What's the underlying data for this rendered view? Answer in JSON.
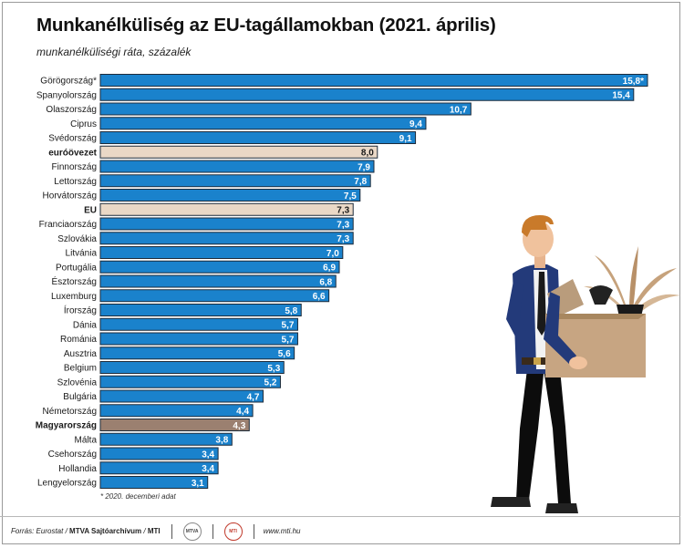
{
  "title": "Munkanélküliség az EU-tagállamokban (2021. április)",
  "subtitle": "munkanélküliségi ráta, százalék",
  "footnote": "* 2020. decemberi adat",
  "footer": {
    "source_label": "Forrás: Eurostat",
    "credit": "MTVA Sajtóarchívum",
    "agency": "MTI",
    "website": "www.mti.hu",
    "logo1": "MTVA",
    "logo2": "MTI"
  },
  "colors": {
    "bar": "#1a82cc",
    "highlight": "#ead8c6",
    "hungary": "#9b8070",
    "bar_border": "#1d2b3a"
  },
  "chart_data": {
    "type": "bar",
    "orientation": "horizontal",
    "title": "Munkanélküliség az EU-tagállamokban (2021. április)",
    "subtitle": "munkanélküliségi ráta, százalék",
    "xlim": [
      0,
      15.8
    ],
    "grid": false,
    "categories": [
      "Görögország*",
      "Spanyolország",
      "Olaszország",
      "Ciprus",
      "Svédország",
      "euróövezet",
      "Finnország",
      "Lettország",
      "Horvátország",
      "EU",
      "Franciaország",
      "Szlovákia",
      "Litvánia",
      "Portugália",
      "Észtország",
      "Luxemburg",
      "Írország",
      "Dánia",
      "Románia",
      "Ausztria",
      "Belgium",
      "Szlovénia",
      "Bulgária",
      "Németország",
      "Magyarország",
      "Málta",
      "Csehország",
      "Hollandia",
      "Lengyelország"
    ],
    "values": [
      15.8,
      15.4,
      10.7,
      9.4,
      9.1,
      8.0,
      7.9,
      7.8,
      7.5,
      7.3,
      7.3,
      7.3,
      7.0,
      6.9,
      6.8,
      6.6,
      5.8,
      5.7,
      5.7,
      5.6,
      5.3,
      5.2,
      4.7,
      4.4,
      4.3,
      3.8,
      3.4,
      3.4,
      3.1
    ],
    "value_labels": [
      "15,8*",
      "15,4",
      "10,7",
      "9,4",
      "9,1",
      "8,0",
      "7,9",
      "7,8",
      "7,5",
      "7,3",
      "7,3",
      "7,3",
      "7,0",
      "6,9",
      "6,8",
      "6,6",
      "5,8",
      "5,7",
      "5,7",
      "5,6",
      "5,3",
      "5,2",
      "4,7",
      "4,4",
      "4,3",
      "3,8",
      "3,4",
      "3,4",
      "3,1"
    ],
    "highlights": {
      "euróövezet": "aggregate",
      "EU": "aggregate",
      "Magyarország": "hungary"
    }
  }
}
